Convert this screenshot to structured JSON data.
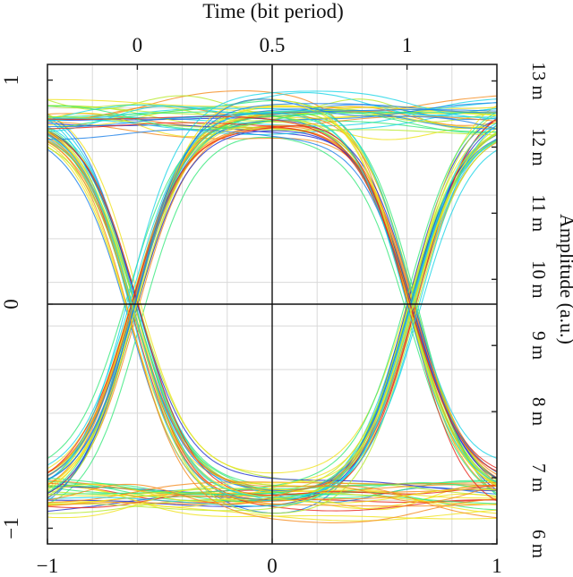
{
  "chart_data": {
    "type": "line",
    "title": "",
    "top_axis": {
      "label": "Time (bit period)",
      "ticks": [
        {
          "value": 0,
          "label": "0"
        },
        {
          "value": 0.5,
          "label": "0.5"
        },
        {
          "value": 1,
          "label": "1"
        }
      ]
    },
    "bottom_axis": {
      "label": "",
      "range": [
        -1,
        1
      ],
      "ticks": [
        {
          "value": -1,
          "label": "−1"
        },
        {
          "value": 0,
          "label": "0"
        },
        {
          "value": 1,
          "label": "1"
        }
      ]
    },
    "left_axis": {
      "label": "",
      "range": [
        -1.07,
        1.07
      ],
      "ticks": [
        {
          "value": 1,
          "label": "1"
        },
        {
          "value": 0,
          "label": "0"
        },
        {
          "value": -1,
          "label": "−1"
        }
      ]
    },
    "right_axis": {
      "label": "Amplitude  (a.u.)",
      "ticks": [
        {
          "value": 13,
          "label": "13 m"
        },
        {
          "value": 12,
          "label": "12 m"
        },
        {
          "value": 11,
          "label": "11 m"
        },
        {
          "value": 10,
          "label": "10 m"
        },
        {
          "value": 9,
          "label": "9 m"
        },
        {
          "value": 8,
          "label": "8 m"
        },
        {
          "value": 7,
          "label": "7 m"
        },
        {
          "value": 6,
          "label": "6 m"
        }
      ]
    },
    "grid": true,
    "plot_style": "eye diagram, density-colored traces (blue low density to red high density)",
    "density_colors": [
      "#1f2fd0",
      "#1a7fe8",
      "#19d4e6",
      "#35e87a",
      "#b6ea2a",
      "#f0e21c",
      "#f58a1a",
      "#e8261a"
    ],
    "eye_model": {
      "high_level": 0.84,
      "low_level": -0.86,
      "crossing_times": [
        -0.62,
        0.62
      ],
      "trace_count": 110,
      "level_spread": 0.09
    }
  }
}
